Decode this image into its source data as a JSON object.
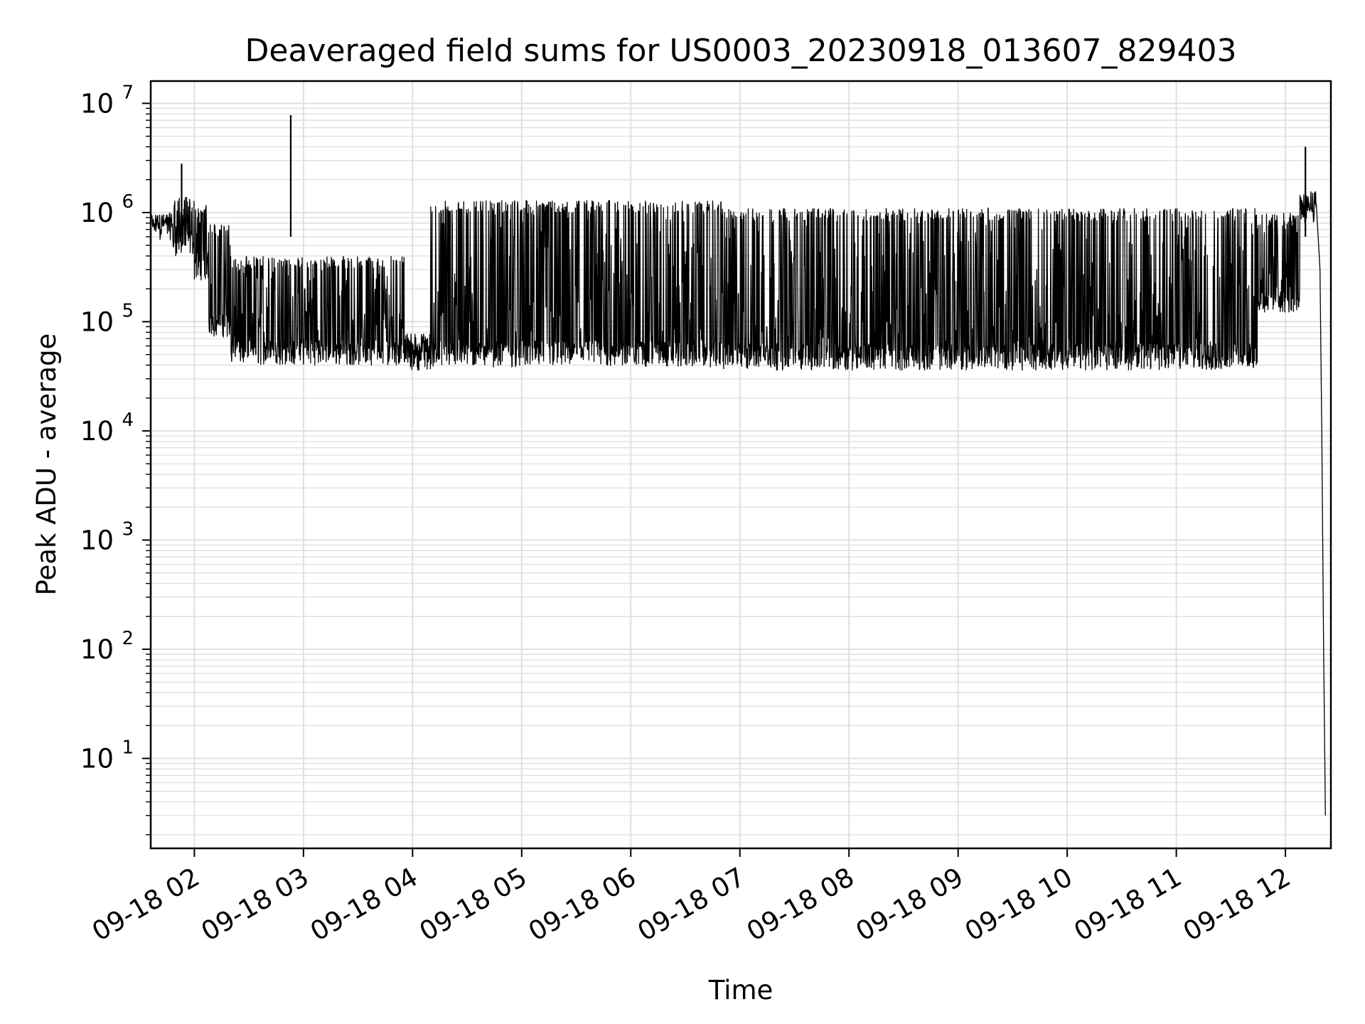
{
  "chart_data": {
    "type": "line",
    "title": "Deaveraged field sums for US0003_20230918_013607_829403",
    "xlabel": "Time",
    "ylabel": "Peak ADU - average",
    "x_axis": {
      "type": "time",
      "tick_labels": [
        "09-18 02",
        "09-18 03",
        "09-18 04",
        "09-18 05",
        "09-18 06",
        "09-18 07",
        "09-18 08",
        "09-18 09",
        "09-18 10",
        "09-18 11",
        "09-18 12"
      ],
      "range": [
        "2023-09-18T01:36",
        "2023-09-18T12:25"
      ]
    },
    "y_axis": {
      "scale": "log",
      "tick_bases": [
        "10",
        "10",
        "10",
        "10",
        "10",
        "10",
        "10"
      ],
      "tick_exponents": [
        "1",
        "2",
        "3",
        "4",
        "5",
        "6",
        "7"
      ],
      "range": [
        1.5,
        16000000
      ]
    },
    "grid": true,
    "line_color": "#000000",
    "grid_color": "#e0e0e0",
    "series": [
      {
        "segments": [
          {
            "from": "2023-09-18T01:36",
            "to": "2023-09-18T01:48",
            "base": 700000,
            "top": 1000000
          },
          {
            "from": "2023-09-18T01:48",
            "to": "2023-09-18T02:00",
            "base": 500000,
            "top": 1400000
          },
          {
            "from": "2023-09-18T02:00",
            "to": "2023-09-18T02:08",
            "base": 300000,
            "top": 1200000
          },
          {
            "from": "2023-09-18T02:08",
            "to": "2023-09-18T02:20",
            "base": 90000,
            "top": 800000
          },
          {
            "from": "2023-09-18T02:20",
            "to": "2023-09-18T03:56",
            "base": 50000,
            "top": 400000
          },
          {
            "from": "2023-09-18T03:56",
            "to": "2023-09-18T04:10",
            "base": 45000,
            "top": 80000
          },
          {
            "from": "2023-09-18T04:10",
            "to": "2023-09-18T06:50",
            "base": 48000,
            "top": 1300000
          },
          {
            "from": "2023-09-18T06:50",
            "to": "2023-09-18T11:45",
            "base": 45000,
            "top": 1100000
          },
          {
            "from": "2023-09-18T11:45",
            "to": "2023-09-18T12:08",
            "base": 150000,
            "top": 1000000
          },
          {
            "from": "2023-09-18T12:08",
            "to": "2023-09-18T12:17",
            "base": 1000000,
            "top": 1600000
          }
        ],
        "spikes": [
          {
            "t": "2023-09-18T01:53",
            "v": 2800000
          },
          {
            "t": "2023-09-18T02:53",
            "v": 7800000
          },
          {
            "t": "2023-09-18T12:11",
            "v": 4000000
          }
        ],
        "tail": [
          {
            "t": "2023-09-18T12:17",
            "v": 1200000
          },
          {
            "t": "2023-09-18T12:19",
            "v": 300000
          },
          {
            "t": "2023-09-18T12:20",
            "v": 10000
          },
          {
            "t": "2023-09-18T12:21",
            "v": 100
          },
          {
            "t": "2023-09-18T12:22",
            "v": 3
          }
        ]
      }
    ]
  }
}
